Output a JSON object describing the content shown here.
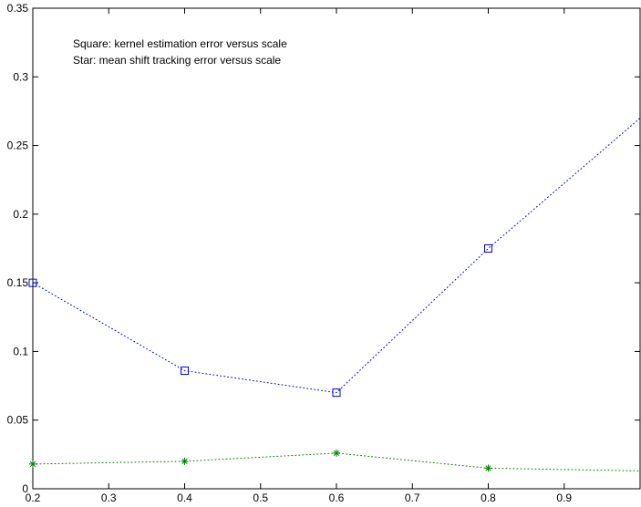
{
  "chart_data": {
    "type": "line",
    "title": "",
    "xlabel": "",
    "ylabel": "",
    "xlim": [
      0.2,
      1.0
    ],
    "ylim": [
      0,
      0.35
    ],
    "xticks": [
      "0.2",
      "0.3",
      "0.4",
      "0.5",
      "0.6",
      "0.7",
      "0.8",
      "0.9"
    ],
    "yticks": [
      "0",
      "0.05",
      "0.1",
      "0.15",
      "0.2",
      "0.25",
      "0.3",
      "0.35"
    ],
    "grid": false,
    "annotations": [
      "Square: kernel estimation error versus scale",
      "Star: mean shift tracking error versus scale"
    ],
    "series": [
      {
        "marker": "square",
        "color": "#0000ff",
        "line_style": "dotted",
        "x": [
          0.2,
          0.4,
          0.6,
          0.8,
          1.0
        ],
        "y": [
          0.15,
          0.086,
          0.07,
          0.175,
          0.27
        ],
        "marked": [
          true,
          true,
          true,
          true,
          false
        ]
      },
      {
        "marker": "star",
        "color": "#008000",
        "line_style": "dotted",
        "x": [
          0.2,
          0.4,
          0.6,
          0.8,
          1.0
        ],
        "y": [
          0.018,
          0.02,
          0.026,
          0.015,
          0.013
        ],
        "marked": [
          true,
          true,
          true,
          true,
          false
        ]
      }
    ]
  }
}
